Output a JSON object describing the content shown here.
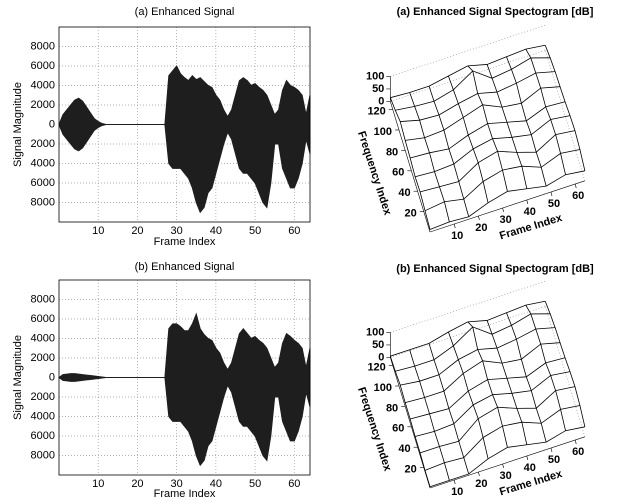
{
  "chart_data": [
    {
      "type": "waveform",
      "title": "(a) Enhanced Signal",
      "xlabel": "Frame Index",
      "ylabel": "Signal Magnitude",
      "x": [
        0,
        1,
        2,
        3,
        4,
        5,
        6,
        7,
        8,
        9,
        10,
        11,
        12,
        13,
        14,
        15,
        16,
        17,
        18,
        19,
        20,
        21,
        22,
        23,
        24,
        25,
        26,
        27,
        28,
        29,
        30,
        31,
        32,
        33,
        34,
        35,
        36,
        37,
        38,
        39,
        40,
        41,
        42,
        43,
        44,
        45,
        46,
        47,
        48,
        49,
        50,
        51,
        52,
        53,
        54,
        55,
        56,
        57,
        58,
        59,
        60,
        61,
        62,
        63,
        64
      ],
      "series": [
        {
          "color": "#1e1e1e",
          "values": [
            0,
            1000,
            1500,
            2000,
            2500,
            2700,
            2400,
            1800,
            1200,
            600,
            300,
            100,
            0,
            0,
            0,
            0,
            0,
            0,
            0,
            0,
            0,
            0,
            0,
            0,
            0,
            0,
            0,
            0,
            5000,
            5500,
            6000,
            5200,
            4800,
            4500,
            5000,
            4600,
            4800,
            4400,
            4000,
            3800,
            3000,
            2500,
            1500,
            800,
            1500,
            3000,
            4500,
            4800,
            4500,
            4000,
            4200,
            3800,
            3500,
            3000,
            2000,
            1000,
            1500,
            3500,
            4500,
            4000,
            3800,
            3500,
            3000,
            1000,
            3000
          ]
        },
        {
          "color": "#1e1e1e",
          "values": [
            0,
            -1000,
            -1500,
            -2000,
            -2500,
            -2700,
            -2400,
            -1800,
            -1200,
            -600,
            -300,
            -100,
            0,
            0,
            0,
            0,
            0,
            0,
            0,
            0,
            0,
            0,
            0,
            0,
            0,
            0,
            0,
            0,
            -4000,
            -4500,
            -4500,
            -4500,
            -5000,
            -5500,
            -6500,
            -8000,
            -9000,
            -8500,
            -7000,
            -6500,
            -5000,
            -3500,
            -2000,
            -800,
            -1500,
            -3000,
            -4500,
            -5000,
            -5000,
            -5500,
            -6000,
            -7000,
            -8000,
            -8500,
            -6000,
            -2000,
            -2000,
            -4500,
            -5500,
            -6500,
            -6500,
            -5500,
            -4000,
            -1500,
            -3000
          ]
        }
      ],
      "xlim": [
        0,
        64
      ],
      "ylim": [
        -10000,
        10000
      ],
      "xticks": [
        10,
        20,
        30,
        40,
        50,
        60
      ],
      "yticks": [
        8000,
        6000,
        4000,
        2000,
        0,
        {
          "value": -2000,
          "label": "2000"
        },
        {
          "value": -4000,
          "label": "4000"
        },
        {
          "value": -6000,
          "label": "6000"
        },
        {
          "value": -8000,
          "label": "8000"
        }
      ],
      "grid": true
    },
    {
      "type": "surface3d",
      "title": "(a) Enhanced Signal Spectogram [dB]",
      "xlabel": "Frame Index",
      "ylabel": "Frequency Index",
      "x": [
        0,
        8,
        16,
        24,
        32,
        40,
        48,
        56,
        64
      ],
      "y": [
        0,
        16,
        32,
        48,
        64,
        80,
        96,
        112,
        128
      ],
      "z": [
        [
          10,
          15,
          10,
          40,
          60,
          45,
          30,
          50,
          40
        ],
        [
          20,
          30,
          15,
          60,
          80,
          70,
          40,
          70,
          60
        ],
        [
          30,
          25,
          20,
          70,
          90,
          60,
          35,
          80,
          70
        ],
        [
          25,
          20,
          25,
          60,
          75,
          55,
          40,
          75,
          65
        ],
        [
          35,
          30,
          20,
          50,
          70,
          50,
          30,
          60,
          55
        ],
        [
          40,
          25,
          30,
          55,
          80,
          45,
          35,
          70,
          50
        ],
        [
          50,
          30,
          25,
          45,
          60,
          40,
          50,
          65,
          45
        ],
        [
          30,
          20,
          15,
          35,
          85,
          30,
          40,
          60,
          35
        ],
        [
          15,
          10,
          10,
          25,
          40,
          20,
          25,
          30,
          20
        ]
      ],
      "xlim": [
        0,
        64
      ],
      "ylim": [
        0,
        128
      ],
      "zlim": [
        0,
        100
      ],
      "xticks": [
        10,
        20,
        30,
        40,
        50,
        60
      ],
      "yticks": [
        20,
        40,
        60,
        80,
        100,
        120
      ],
      "zticks": [
        0,
        50,
        100
      ],
      "color": "#000000"
    },
    {
      "type": "waveform",
      "title": "(b) Enhanced Signal",
      "xlabel": "Frame Index",
      "ylabel": "Signal Magnitude",
      "x": [
        0,
        1,
        2,
        3,
        4,
        5,
        6,
        7,
        8,
        9,
        10,
        11,
        12,
        13,
        14,
        15,
        16,
        17,
        18,
        19,
        20,
        21,
        22,
        23,
        24,
        25,
        26,
        27,
        28,
        29,
        30,
        31,
        32,
        33,
        34,
        35,
        36,
        37,
        38,
        39,
        40,
        41,
        42,
        43,
        44,
        45,
        46,
        47,
        48,
        49,
        50,
        51,
        52,
        53,
        54,
        55,
        56,
        57,
        58,
        59,
        60,
        61,
        62,
        63,
        64
      ],
      "series": [
        {
          "color": "#1e1e1e",
          "values": [
            0,
            300,
            350,
            400,
            400,
            350,
            300,
            250,
            200,
            150,
            100,
            50,
            0,
            0,
            0,
            0,
            0,
            0,
            0,
            0,
            0,
            0,
            0,
            0,
            0,
            0,
            0,
            0,
            5000,
            5500,
            5500,
            5200,
            4800,
            4800,
            5500,
            6500,
            5000,
            4400,
            4000,
            3800,
            3000,
            2500,
            1500,
            800,
            1500,
            3000,
            4500,
            5000,
            4500,
            4000,
            4200,
            3800,
            3500,
            3000,
            2000,
            1000,
            1500,
            3500,
            4500,
            4200,
            3800,
            3500,
            3000,
            1000,
            3000
          ]
        },
        {
          "color": "#1e1e1e",
          "values": [
            0,
            -300,
            -350,
            -400,
            -400,
            -350,
            -300,
            -250,
            -200,
            -150,
            -100,
            -50,
            0,
            0,
            0,
            0,
            0,
            0,
            0,
            0,
            0,
            0,
            0,
            0,
            0,
            0,
            0,
            0,
            -4000,
            -4500,
            -4500,
            -4500,
            -5000,
            -5500,
            -6500,
            -8000,
            -9000,
            -8500,
            -7000,
            -6500,
            -5000,
            -3500,
            -2000,
            -800,
            -1500,
            -3000,
            -4500,
            -5000,
            -5000,
            -5500,
            -6000,
            -7000,
            -8000,
            -8500,
            -6000,
            -2000,
            -2000,
            -4500,
            -5500,
            -6500,
            -6500,
            -5500,
            -4000,
            -1500,
            -3000
          ]
        }
      ],
      "xlim": [
        0,
        64
      ],
      "ylim": [
        -10000,
        10000
      ],
      "xticks": [
        10,
        20,
        30,
        40,
        50,
        60
      ],
      "yticks": [
        8000,
        6000,
        4000,
        2000,
        0,
        {
          "value": -2000,
          "label": "2000"
        },
        {
          "value": -4000,
          "label": "4000"
        },
        {
          "value": -6000,
          "label": "6000"
        },
        {
          "value": -8000,
          "label": "8000"
        }
      ],
      "grid": true
    },
    {
      "type": "surface3d",
      "title": "(b) Enhanced Signal Spectogram [dB]",
      "xlabel": "Frame Index",
      "ylabel": "Frequency Index",
      "x": [
        0,
        8,
        16,
        24,
        32,
        40,
        48,
        56,
        64
      ],
      "y": [
        0,
        16,
        32,
        48,
        64,
        80,
        96,
        112,
        128
      ],
      "z": [
        [
          5,
          5,
          5,
          40,
          60,
          45,
          30,
          50,
          40
        ],
        [
          5,
          10,
          5,
          60,
          80,
          70,
          40,
          70,
          60
        ],
        [
          10,
          10,
          5,
          70,
          90,
          60,
          35,
          80,
          70
        ],
        [
          10,
          5,
          10,
          60,
          75,
          55,
          40,
          75,
          65
        ],
        [
          15,
          10,
          5,
          50,
          70,
          50,
          30,
          60,
          55
        ],
        [
          15,
          10,
          10,
          55,
          80,
          45,
          35,
          70,
          50
        ],
        [
          20,
          10,
          10,
          45,
          60,
          40,
          50,
          65,
          45
        ],
        [
          10,
          5,
          5,
          35,
          85,
          30,
          40,
          60,
          35
        ],
        [
          5,
          5,
          5,
          25,
          40,
          20,
          25,
          30,
          20
        ]
      ],
      "xlim": [
        0,
        64
      ],
      "ylim": [
        0,
        128
      ],
      "zlim": [
        0,
        100
      ],
      "xticks": [
        10,
        20,
        30,
        40,
        50,
        60
      ],
      "yticks": [
        20,
        40,
        60,
        80,
        100,
        120
      ],
      "zticks": [
        0,
        50,
        100
      ],
      "color": "#000000"
    }
  ]
}
